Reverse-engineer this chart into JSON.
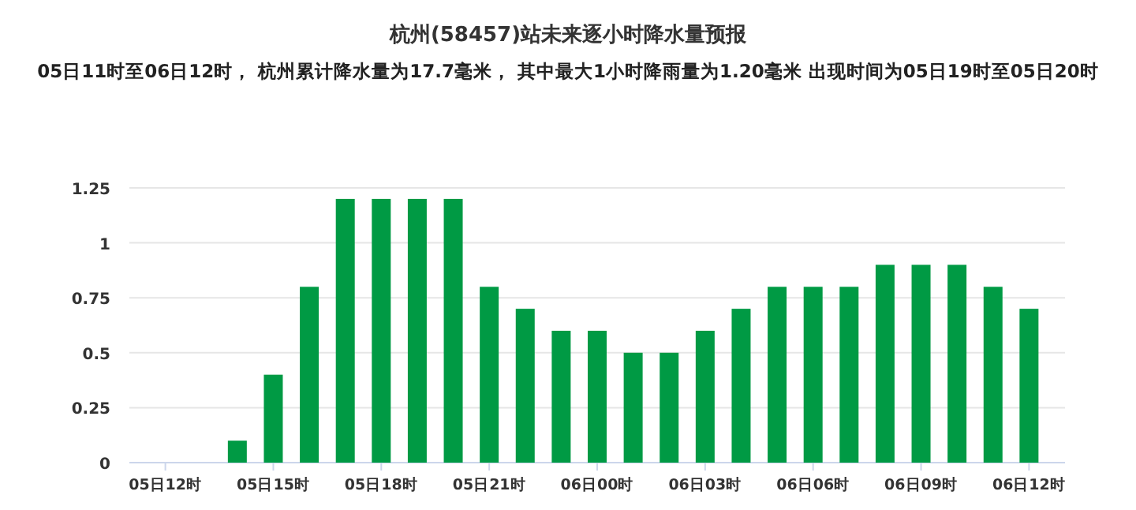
{
  "chart_data": {
    "type": "bar",
    "title": "杭州(58457)站未来逐小时降水量预报",
    "subtitle": "05日11时至06日12时， 杭州累计降水量为17.7毫米， 其中最大1小时降雨量为1.20毫米 出现时间为05日19时至05日20时",
    "categories": [
      "05日12时",
      null,
      null,
      "05日15时",
      null,
      null,
      "05日18时",
      null,
      null,
      "05日21时",
      null,
      null,
      "06日00时",
      null,
      null,
      "06日03时",
      null,
      null,
      "06日06时",
      null,
      null,
      "06日09时",
      null,
      null,
      "06日12时"
    ],
    "values": [
      0,
      0,
      0.1,
      0.4,
      0.8,
      1.2,
      1.2,
      1.2,
      1.2,
      0.8,
      0.7,
      0.6,
      0.6,
      0.5,
      0.5,
      0.6,
      0.7,
      0.8,
      0.8,
      0.8,
      0.9,
      0.9,
      0.9,
      0.8,
      0.7
    ],
    "color": "#009a44",
    "ylim": [
      0,
      1.25
    ],
    "yticks": [
      0,
      0.25,
      0.5,
      0.75,
      1,
      1.25
    ],
    "grid": "y"
  }
}
